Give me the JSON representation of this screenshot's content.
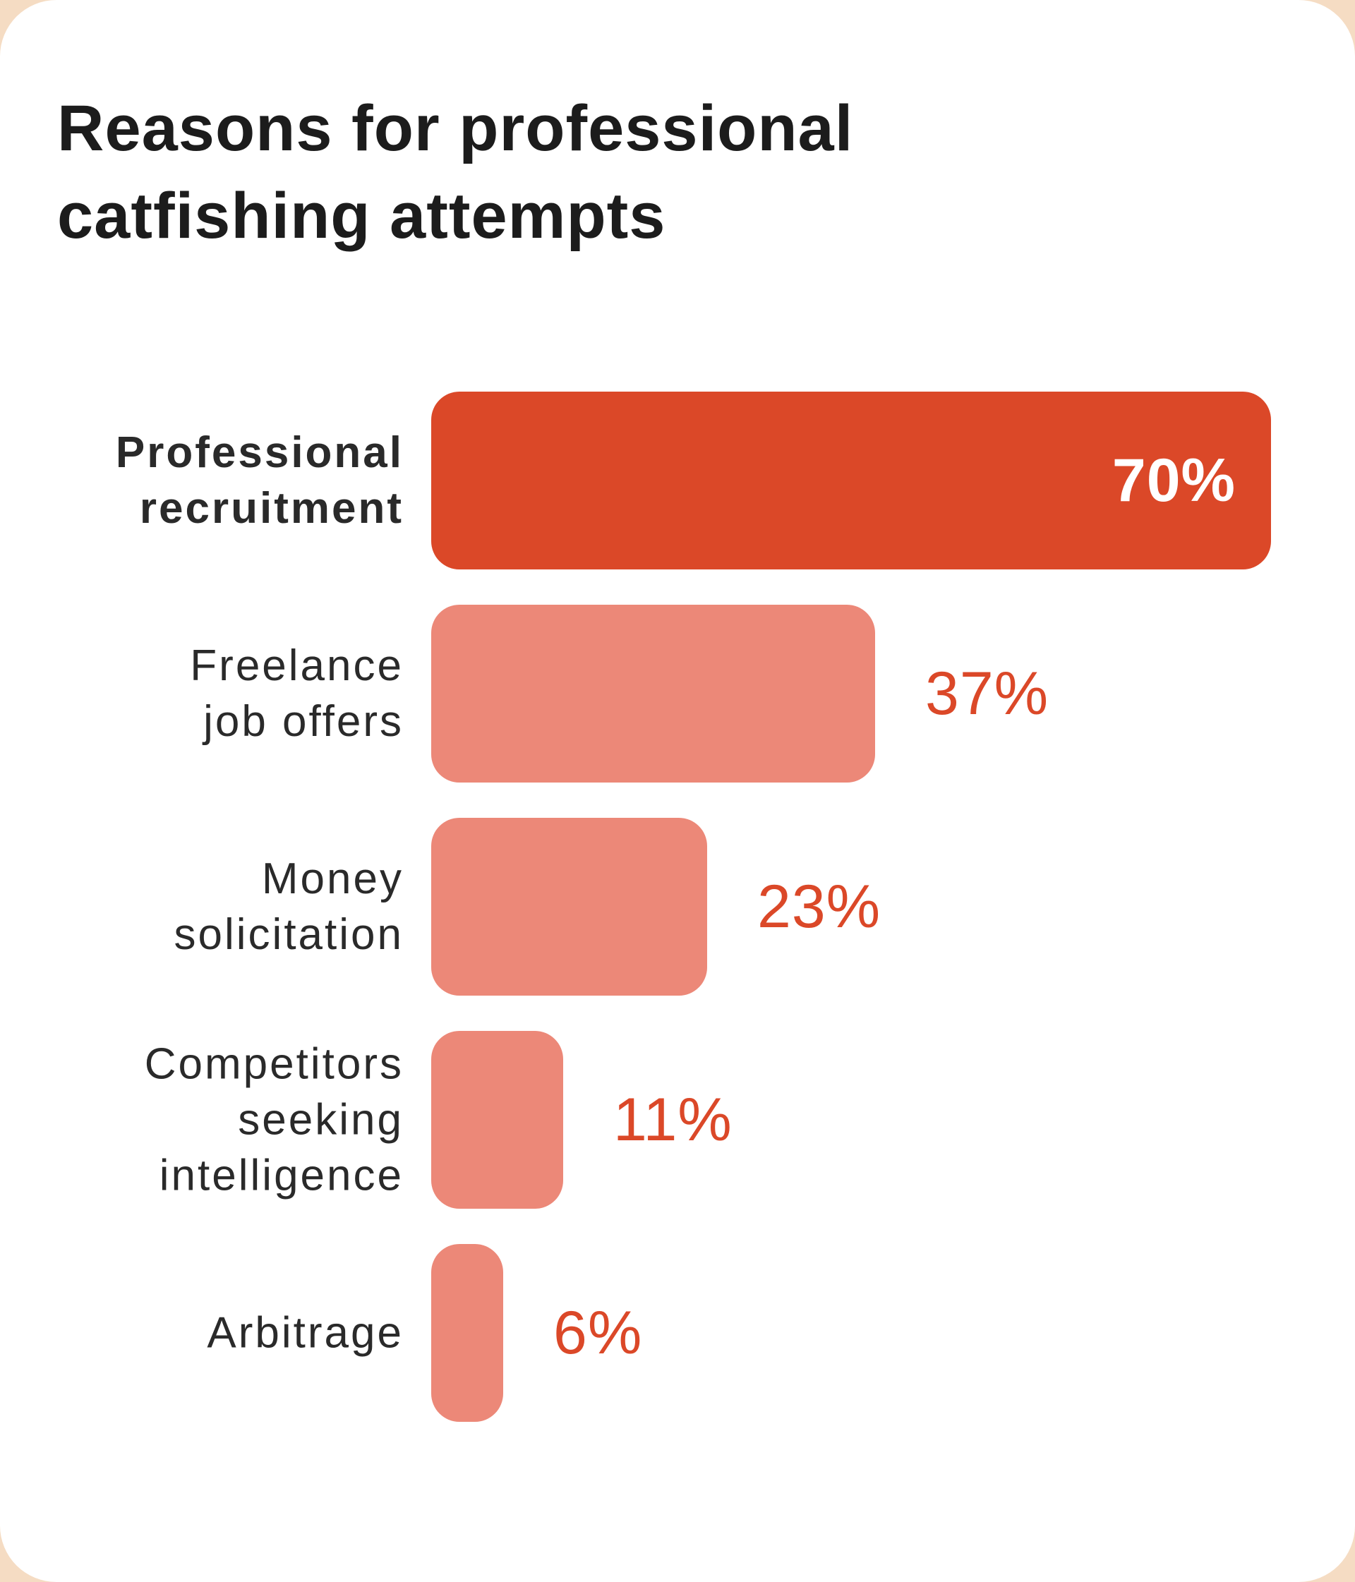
{
  "chart_data": {
    "type": "bar",
    "orientation": "horizontal",
    "title": "Reasons for professional catfishing attempts",
    "categories": [
      "Professional recruitment",
      "Freelance job offers",
      "Money solicitation",
      "Competitors seeking intelligence",
      "Arbitrage"
    ],
    "values": [
      70,
      37,
      23,
      11,
      6
    ],
    "value_labels": [
      "70%",
      "37%",
      "23%",
      "11%",
      "6%"
    ],
    "colors": [
      "#db4828",
      "#ec8878",
      "#ec8878",
      "#ec8878",
      "#ec8878"
    ],
    "value_label_color": "#db4828"
  }
}
